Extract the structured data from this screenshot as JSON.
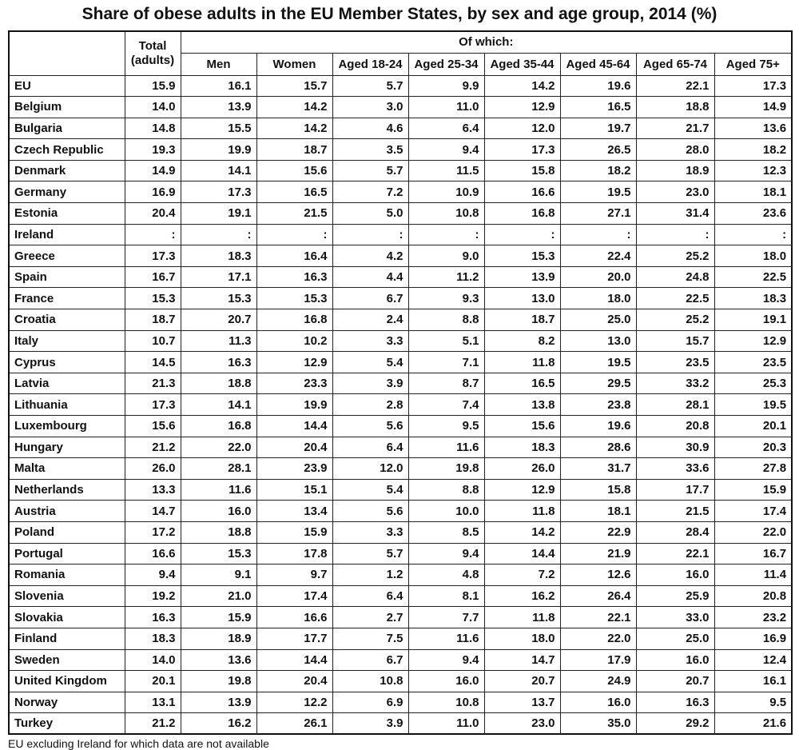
{
  "title": "Share of obese adults in the EU Member States, by sex and age group, 2014 (%)",
  "header": {
    "total": "Total\n(adults)",
    "of_which": "Of which:",
    "columns": [
      "Men",
      "Women",
      "Aged 18-24",
      "Aged 25-34",
      "Aged 35-44",
      "Aged 45-64",
      "Aged 65-74",
      "Aged 75+"
    ]
  },
  "table": {
    "rows": [
      [
        "EU",
        "15.9",
        "16.1",
        "15.7",
        "5.7",
        "9.9",
        "14.2",
        "19.6",
        "22.1",
        "17.3"
      ],
      [
        "Belgium",
        "14.0",
        "13.9",
        "14.2",
        "3.0",
        "11.0",
        "12.9",
        "16.5",
        "18.8",
        "14.9"
      ],
      [
        "Bulgaria",
        "14.8",
        "15.5",
        "14.2",
        "4.6",
        "6.4",
        "12.0",
        "19.7",
        "21.7",
        "13.6"
      ],
      [
        "Czech Republic",
        "19.3",
        "19.9",
        "18.7",
        "3.5",
        "9.4",
        "17.3",
        "26.5",
        "28.0",
        "18.2"
      ],
      [
        "Denmark",
        "14.9",
        "14.1",
        "15.6",
        "5.7",
        "11.5",
        "15.8",
        "18.2",
        "18.9",
        "12.3"
      ],
      [
        "Germany",
        "16.9",
        "17.3",
        "16.5",
        "7.2",
        "10.9",
        "16.6",
        "19.5",
        "23.0",
        "18.1"
      ],
      [
        "Estonia",
        "20.4",
        "19.1",
        "21.5",
        "5.0",
        "10.8",
        "16.8",
        "27.1",
        "31.4",
        "23.6"
      ],
      [
        "Ireland",
        ":",
        ":",
        ":",
        ":",
        ":",
        ":",
        ":",
        ":",
        ":"
      ],
      [
        "Greece",
        "17.3",
        "18.3",
        "16.4",
        "4.2",
        "9.0",
        "15.3",
        "22.4",
        "25.2",
        "18.0"
      ],
      [
        "Spain",
        "16.7",
        "17.1",
        "16.3",
        "4.4",
        "11.2",
        "13.9",
        "20.0",
        "24.8",
        "22.5"
      ],
      [
        "France",
        "15.3",
        "15.3",
        "15.3",
        "6.7",
        "9.3",
        "13.0",
        "18.0",
        "22.5",
        "18.3"
      ],
      [
        "Croatia",
        "18.7",
        "20.7",
        "16.8",
        "2.4",
        "8.8",
        "18.7",
        "25.0",
        "25.2",
        "19.1"
      ],
      [
        "Italy",
        "10.7",
        "11.3",
        "10.2",
        "3.3",
        "5.1",
        "8.2",
        "13.0",
        "15.7",
        "12.9"
      ],
      [
        "Cyprus",
        "14.5",
        "16.3",
        "12.9",
        "5.4",
        "7.1",
        "11.8",
        "19.5",
        "23.5",
        "23.5"
      ],
      [
        "Latvia",
        "21.3",
        "18.8",
        "23.3",
        "3.9",
        "8.7",
        "16.5",
        "29.5",
        "33.2",
        "25.3"
      ],
      [
        "Lithuania",
        "17.3",
        "14.1",
        "19.9",
        "2.8",
        "7.4",
        "13.8",
        "23.8",
        "28.1",
        "19.5"
      ],
      [
        "Luxembourg",
        "15.6",
        "16.8",
        "14.4",
        "5.6",
        "9.5",
        "15.6",
        "19.6",
        "20.8",
        "20.1"
      ],
      [
        "Hungary",
        "21.2",
        "22.0",
        "20.4",
        "6.4",
        "11.6",
        "18.3",
        "28.6",
        "30.9",
        "20.3"
      ],
      [
        "Malta",
        "26.0",
        "28.1",
        "23.9",
        "12.0",
        "19.8",
        "26.0",
        "31.7",
        "33.6",
        "27.8"
      ],
      [
        "Netherlands",
        "13.3",
        "11.6",
        "15.1",
        "5.4",
        "8.8",
        "12.9",
        "15.8",
        "17.7",
        "15.9"
      ],
      [
        "Austria",
        "14.7",
        "16.0",
        "13.4",
        "5.6",
        "10.0",
        "11.8",
        "18.1",
        "21.5",
        "17.4"
      ],
      [
        "Poland",
        "17.2",
        "18.8",
        "15.9",
        "3.3",
        "8.5",
        "14.2",
        "22.9",
        "28.4",
        "22.0"
      ],
      [
        "Portugal",
        "16.6",
        "15.3",
        "17.8",
        "5.7",
        "9.4",
        "14.4",
        "21.9",
        "22.1",
        "16.7"
      ],
      [
        "Romania",
        "9.4",
        "9.1",
        "9.7",
        "1.2",
        "4.8",
        "7.2",
        "12.6",
        "16.0",
        "11.4"
      ],
      [
        "Slovenia",
        "19.2",
        "21.0",
        "17.4",
        "6.4",
        "8.1",
        "16.2",
        "26.4",
        "25.9",
        "20.8"
      ],
      [
        "Slovakia",
        "16.3",
        "15.9",
        "16.6",
        "2.7",
        "7.7",
        "11.8",
        "22.1",
        "33.0",
        "23.2"
      ],
      [
        "Finland",
        "18.3",
        "18.9",
        "17.7",
        "7.5",
        "11.6",
        "18.0",
        "22.0",
        "25.0",
        "16.9"
      ],
      [
        "Sweden",
        "14.0",
        "13.6",
        "14.4",
        "6.7",
        "9.4",
        "14.7",
        "17.9",
        "16.0",
        "12.4"
      ],
      [
        "United Kingdom",
        "20.1",
        "19.8",
        "20.4",
        "10.8",
        "16.0",
        "20.7",
        "24.9",
        "20.7",
        "16.1"
      ],
      [
        "Norway",
        "13.1",
        "13.9",
        "12.2",
        "6.9",
        "10.8",
        "13.7",
        "16.0",
        "16.3",
        "9.5"
      ],
      [
        "Turkey",
        "21.2",
        "16.2",
        "26.1",
        "3.9",
        "11.0",
        "23.0",
        "35.0",
        "29.2",
        "21.6"
      ]
    ]
  },
  "footnote": "EU excluding Ireland for which data are not available"
}
